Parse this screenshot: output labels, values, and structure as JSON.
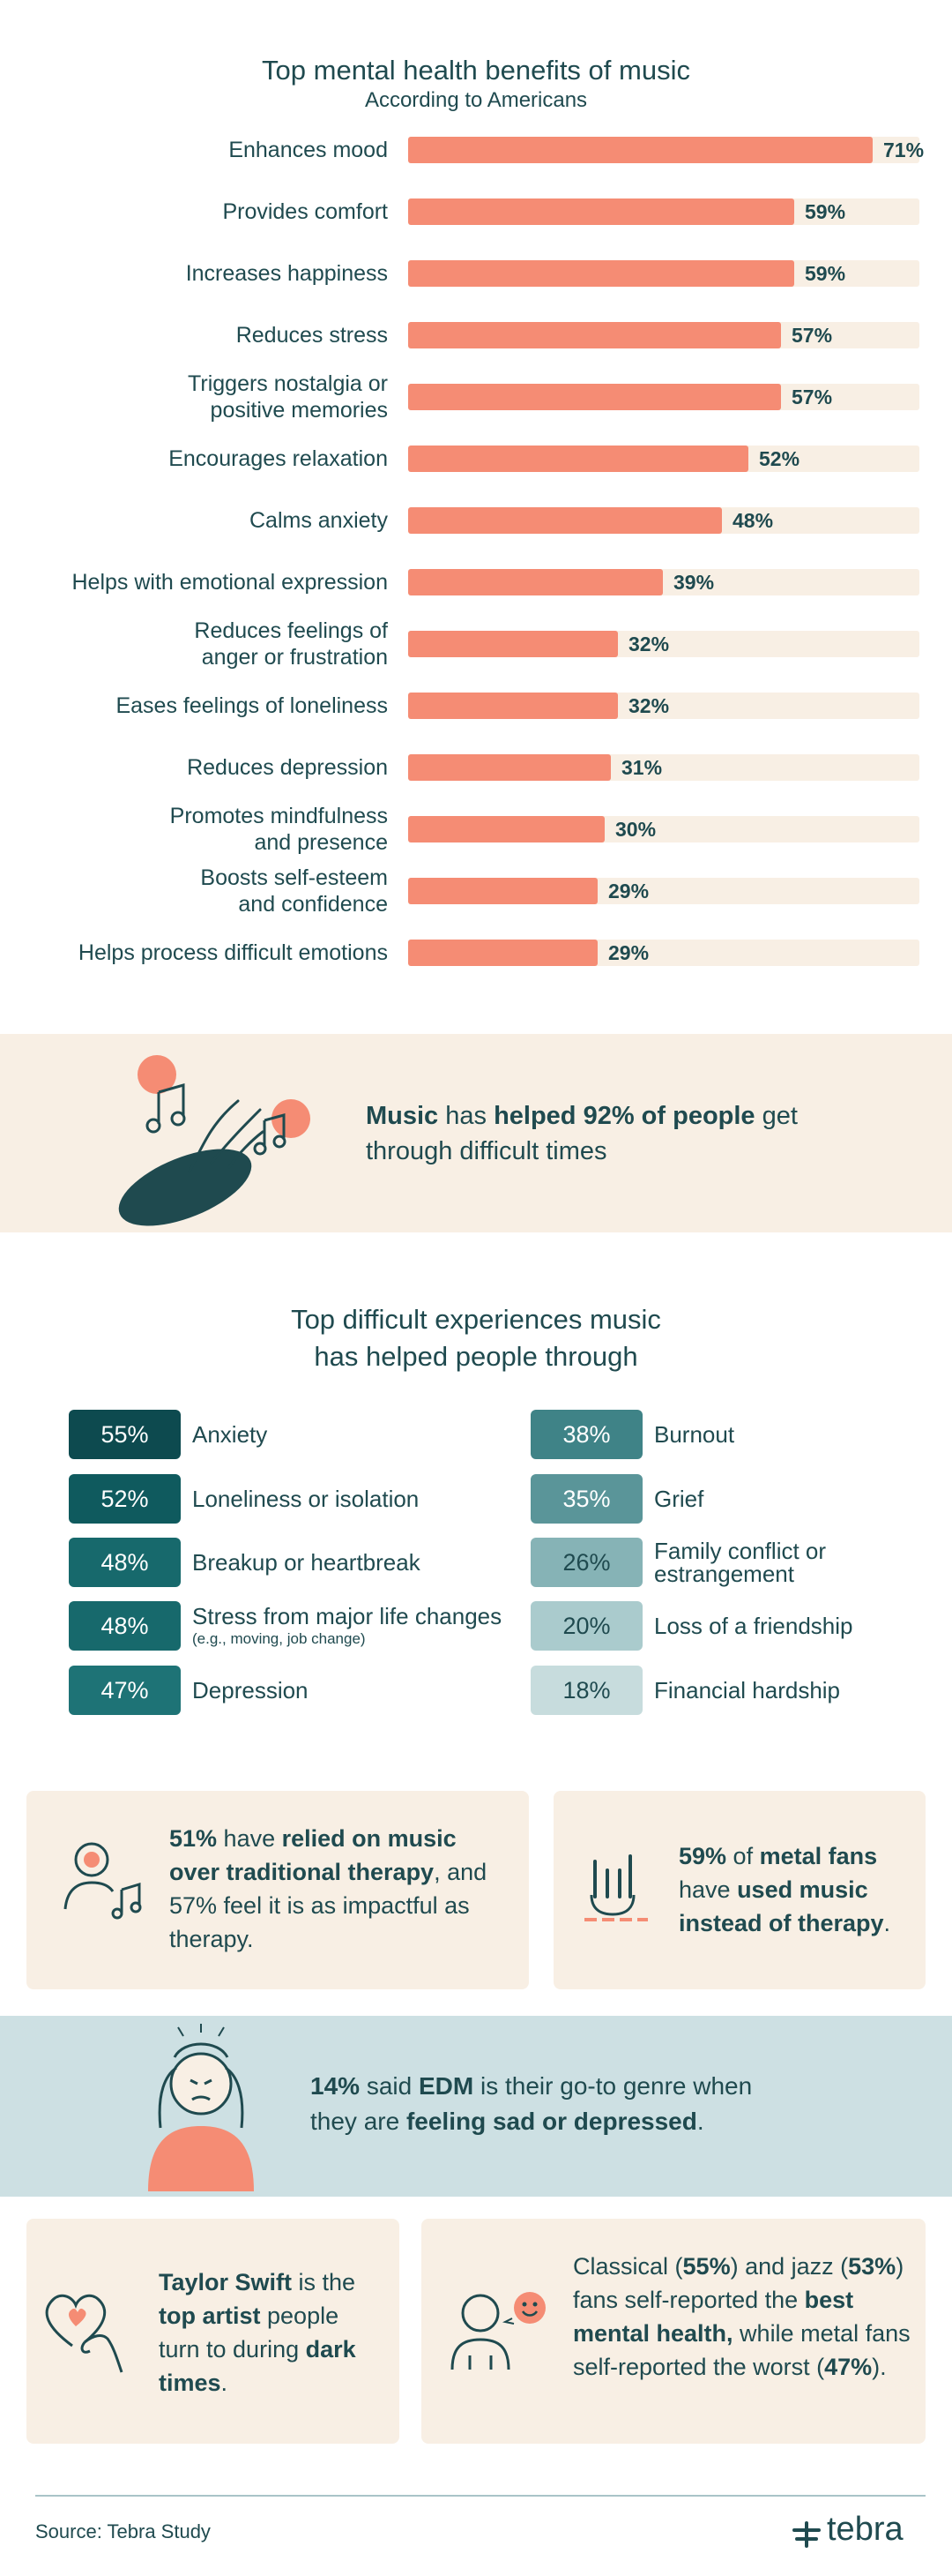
{
  "chart_data": {
    "type": "bar",
    "title": "Top mental health benefits of music",
    "subtitle": "According to Americans",
    "categories": [
      "Enhances mood",
      "Provides comfort",
      "Increases happiness",
      "Reduces stress",
      "Triggers nostalgia or positive memories",
      "Encourages relaxation",
      "Calms anxiety",
      "Helps with emotional expression",
      "Reduces feelings of anger or frustration",
      "Eases feelings of loneliness",
      "Reduces depression",
      "Promotes mindfulness and presence",
      "Boosts self-esteem and confidence",
      "Helps process difficult emotions"
    ],
    "category_lines": [
      [
        "Enhances mood"
      ],
      [
        "Provides comfort"
      ],
      [
        "Increases happiness"
      ],
      [
        "Reduces stress"
      ],
      [
        "Triggers nostalgia or",
        "positive memories"
      ],
      [
        "Encourages relaxation"
      ],
      [
        "Calms anxiety"
      ],
      [
        "Helps with emotional expression"
      ],
      [
        "Reduces feelings of",
        "anger or frustration"
      ],
      [
        "Eases feelings of loneliness"
      ],
      [
        "Reduces depression"
      ],
      [
        "Promotes mindfulness",
        "and presence"
      ],
      [
        "Boosts self-esteem",
        "and confidence"
      ],
      [
        "Helps process difficult emotions"
      ]
    ],
    "values": [
      71,
      59,
      59,
      57,
      57,
      52,
      48,
      39,
      32,
      32,
      31,
      30,
      29,
      29
    ],
    "value_labels": [
      "71%",
      "59%",
      "59%",
      "57%",
      "57%",
      "52%",
      "48%",
      "39%",
      "32%",
      "32%",
      "31%",
      "30%",
      "29%",
      "29%"
    ],
    "xlim": [
      0,
      73
    ],
    "bar_color": "#f58c74",
    "track_color": "#f8efe4"
  },
  "banner": {
    "parts": [
      {
        "text": "Music",
        "bold": true
      },
      {
        "text": " has ",
        "bold": false
      },
      {
        "text": "helped 92% of people",
        "bold": true
      },
      {
        "text": " get through difficult times",
        "bold": false
      }
    ]
  },
  "experiences": {
    "title_line1": "Top difficult experiences music",
    "title_line2": "has helped people through",
    "left": [
      {
        "pct": "55%",
        "label": "Anxiety",
        "color": "#0d4a4f"
      },
      {
        "pct": "52%",
        "label": "Loneliness or isolation",
        "color": "#0f5a5e"
      },
      {
        "pct": "48%",
        "label": "Breakup or heartbreak",
        "color": "#17696c"
      },
      {
        "pct": "48%",
        "label": "Stress from major life changes",
        "note": "(e.g., moving, job change)",
        "color": "#17696c"
      },
      {
        "pct": "47%",
        "label": "Depression",
        "color": "#1e7376"
      }
    ],
    "right": [
      {
        "pct": "38%",
        "label": "Burnout",
        "color": "#3f8387"
      },
      {
        "pct": "35%",
        "label": "Grief",
        "color": "#5a9599"
      },
      {
        "pct": "26%",
        "label": "Family conflict or estrangement",
        "color": "#86b3b6",
        "dark_text": true
      },
      {
        "pct": "20%",
        "label": "Loss of a friendship",
        "color": "#aacbcd",
        "dark_text": true
      },
      {
        "pct": "18%",
        "label": "Financial hardship",
        "color": "#c7dcdd",
        "dark_text": true
      }
    ]
  },
  "cards": {
    "therapy": {
      "parts": [
        {
          "text": "51%",
          "bold": true
        },
        {
          "text": " have ",
          "bold": false
        },
        {
          "text": "relied on music over traditional therapy",
          "bold": true
        },
        {
          "text": ", and 57% feel it is as impactful as therapy.",
          "bold": false
        }
      ]
    },
    "metal": {
      "parts": [
        {
          "text": "59%",
          "bold": true
        },
        {
          "text": " of ",
          "bold": false
        },
        {
          "text": "metal fans",
          "bold": true
        },
        {
          "text": " have ",
          "bold": false
        },
        {
          "text": "used music instead of therapy",
          "bold": true
        },
        {
          "text": ".",
          "bold": false
        }
      ]
    },
    "edm": {
      "parts": [
        {
          "text": "14%",
          "bold": true
        },
        {
          "text": " said ",
          "bold": false
        },
        {
          "text": "EDM",
          "bold": true
        },
        {
          "text": " is their go-to genre when they are ",
          "bold": false
        },
        {
          "text": "feeling sad or depressed",
          "bold": true
        },
        {
          "text": ".",
          "bold": false
        }
      ]
    },
    "taylor": {
      "parts": [
        {
          "text": "Taylor Swift",
          "bold": true
        },
        {
          "text": " is the ",
          "bold": false
        },
        {
          "text": "top artist",
          "bold": true
        },
        {
          "text": " people turn to during ",
          "bold": false
        },
        {
          "text": "dark times",
          "bold": true
        },
        {
          "text": ".",
          "bold": false
        }
      ]
    },
    "classical": {
      "parts": [
        {
          "text": "Classical (",
          "bold": false
        },
        {
          "text": "55%",
          "bold": true
        },
        {
          "text": ") and jazz (",
          "bold": false
        },
        {
          "text": "53%",
          "bold": true
        },
        {
          "text": ") fans self-reported the ",
          "bold": false
        },
        {
          "text": "best mental health,",
          "bold": true
        },
        {
          "text": " while metal fans self-reported the worst (",
          "bold": false
        },
        {
          "text": "47%",
          "bold": true
        },
        {
          "text": ").",
          "bold": false
        }
      ]
    }
  },
  "footer": {
    "source": "Source: Tebra Study",
    "brand": "tebra"
  },
  "colors": {
    "accent": "#f58c74",
    "text": "#1f4a4f",
    "cream": "#f8efe4",
    "teal_band": "#cde0e3"
  },
  "icons": [
    "music-notes-hand-icon",
    "person-music-icon",
    "rock-hand-icon",
    "stressed-person-icon",
    "heart-hand-icon",
    "person-smile-icon",
    "tebra-logo-icon"
  ]
}
